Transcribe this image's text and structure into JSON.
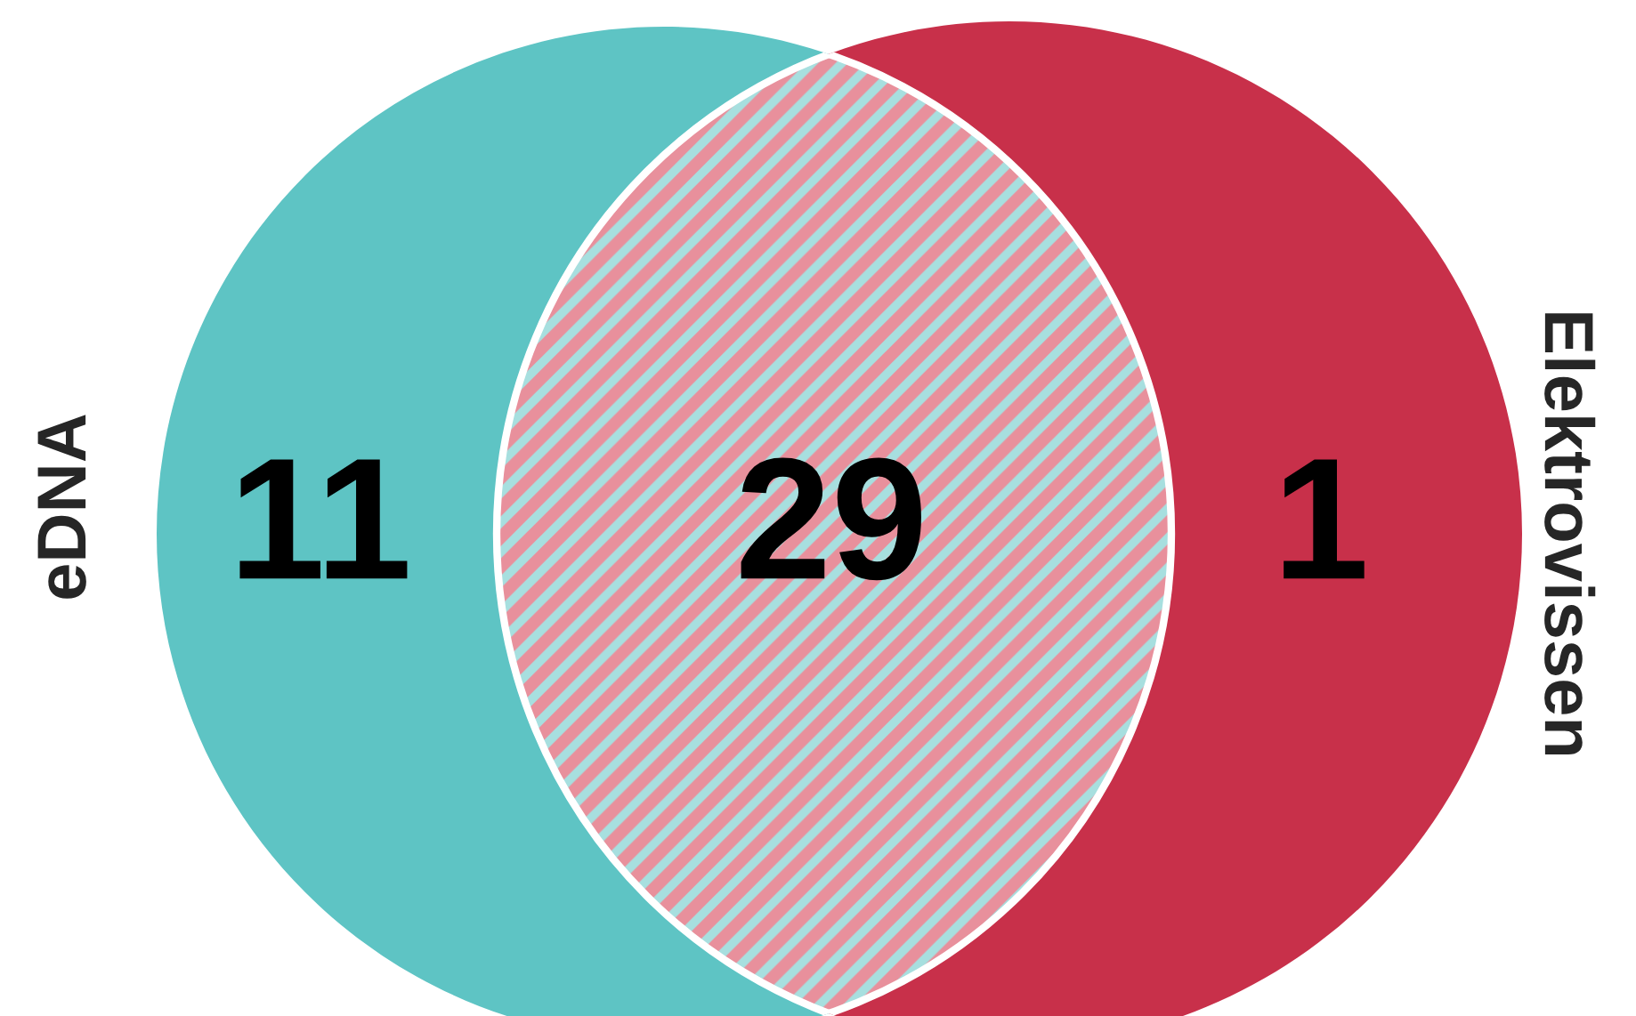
{
  "chart_data": {
    "type": "other",
    "categories": [
      "eDNA",
      null,
      "Elektrovissen"
    ],
    "values": [
      11,
      29,
      1
    ],
    "colors": [
      "#5ec4c4",
      "#e8909c",
      "#c8304a"
    ],
    "data_labels": true
  }
}
